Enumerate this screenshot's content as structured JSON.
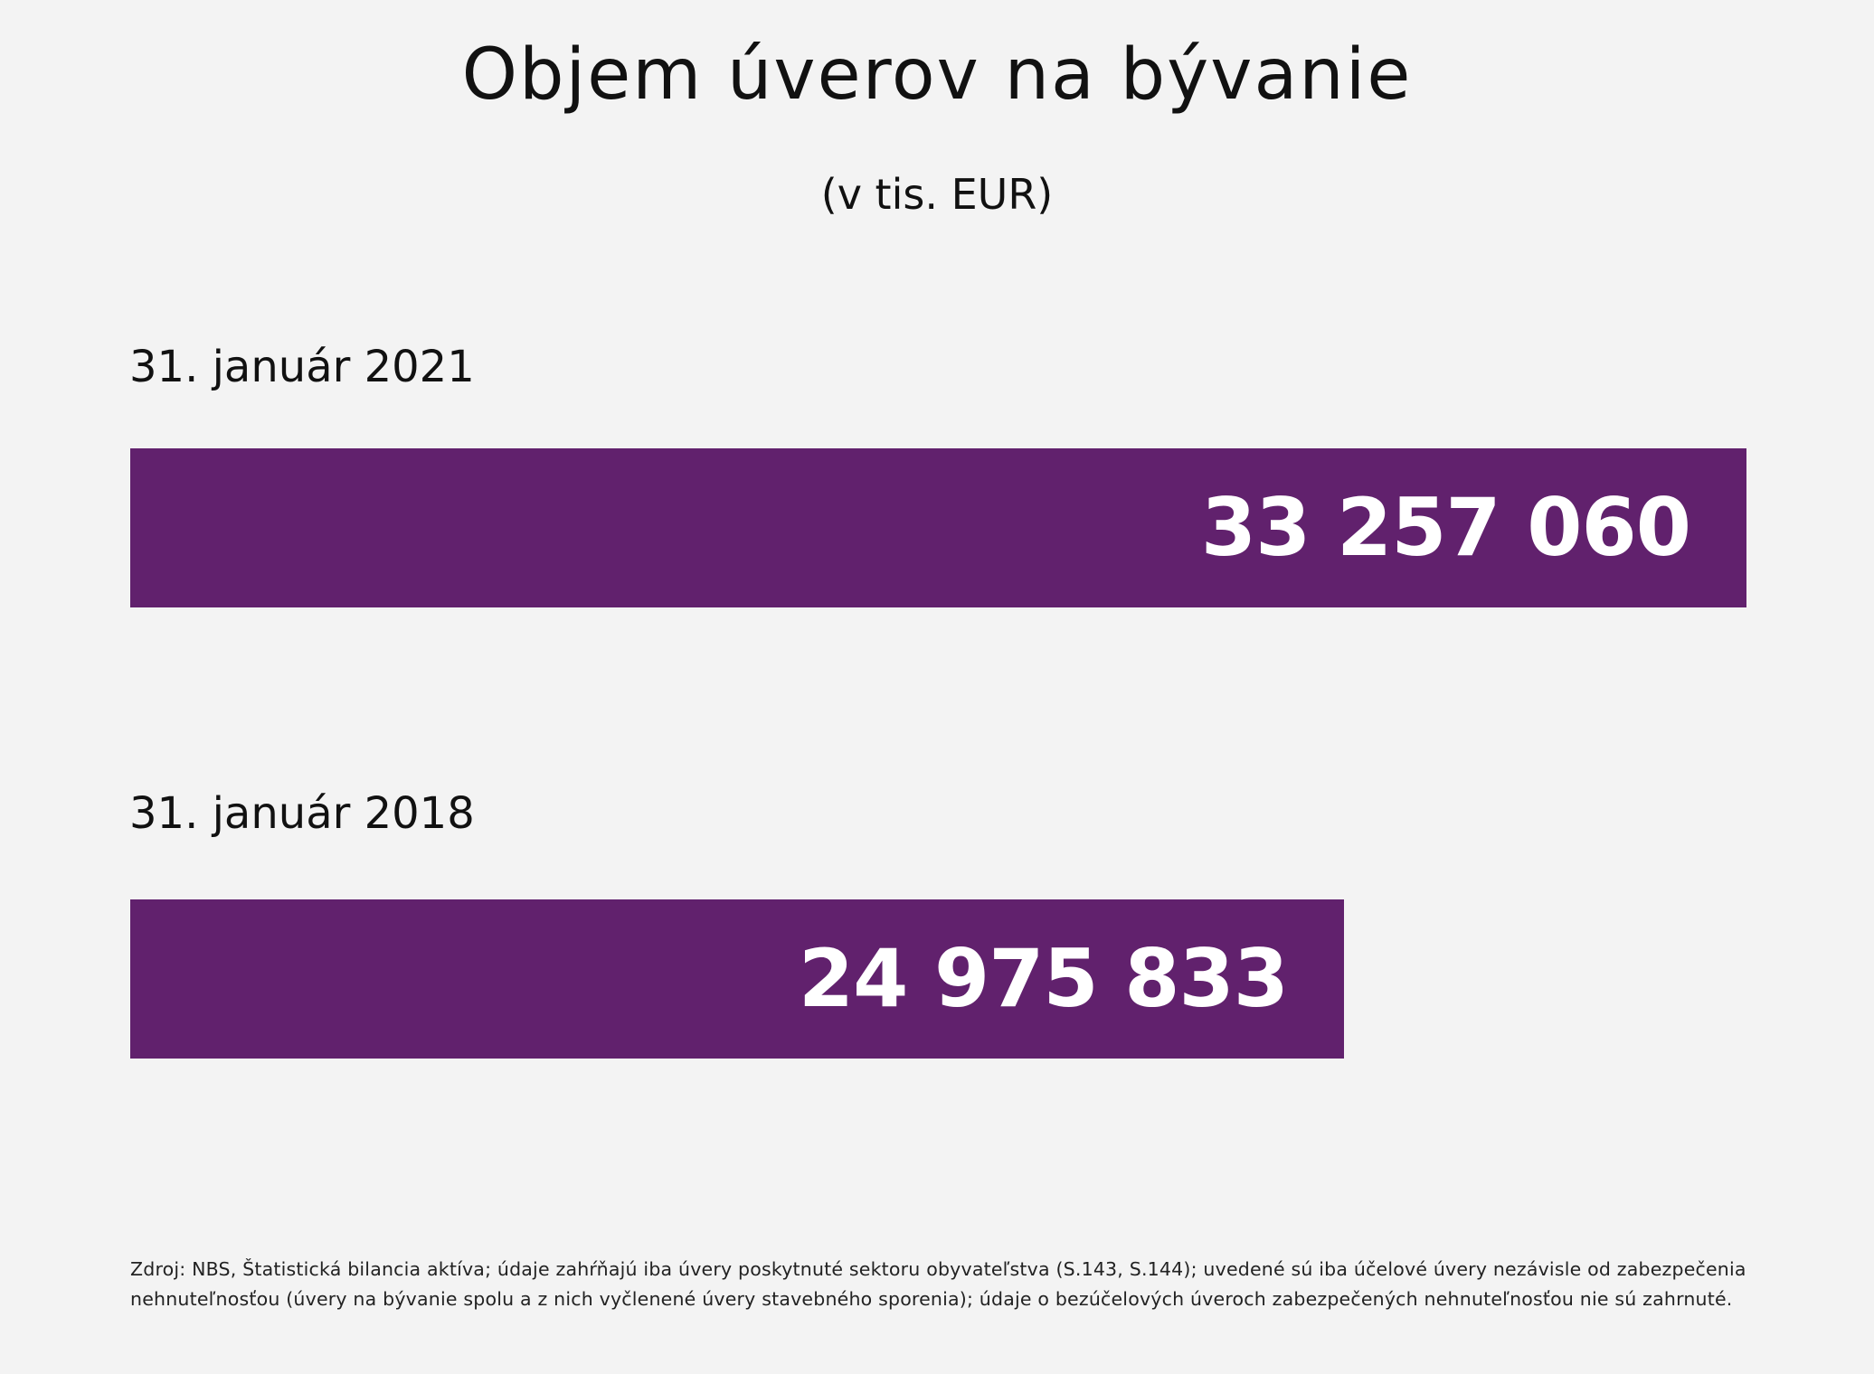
{
  "chart_data": {
    "type": "bar",
    "orientation": "horizontal",
    "title": "Objem úverov na bývanie",
    "subtitle": "(v tis. EUR)",
    "categories": [
      "31. január 2021",
      "31. január 2018"
    ],
    "values": [
      33257060,
      24975833
    ],
    "value_labels": [
      "33 257 060",
      "24 975 833"
    ],
    "bar_color": "#61216d",
    "value_label_color": "#ffffff",
    "background_color": "#f3f3f3",
    "grid": false,
    "legend": "none"
  },
  "footer": {
    "source_line_1": "Zdroj: NBS, Štatistická bilancia aktíva; údaje zahŕňajú iba úvery poskytnuté sektoru obyvateľstva (S.143, S.144); uvedené sú iba účelové úvery nezávisle od zabezpečenia",
    "source_line_2": "nehnuteľnosťou (úvery na bývanie spolu a z nich vyčlenené úvery stavebného sporenia); údaje o bezúčelových úveroch zabezpečených nehnuteľnosťou nie sú zahrnuté."
  }
}
